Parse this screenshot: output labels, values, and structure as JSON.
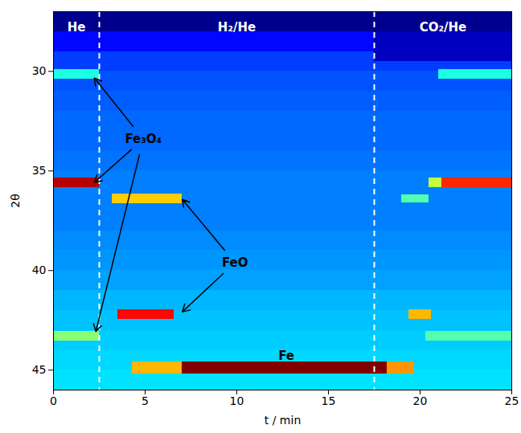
{
  "chart_data": {
    "type": "heatmap",
    "x_label": "t / min",
    "y_label": "2θ",
    "xlim": [
      0,
      25
    ],
    "xticks": [
      0,
      5,
      10,
      15,
      20,
      25
    ],
    "ylim": [
      46,
      27
    ],
    "yticks": [
      30,
      35,
      40,
      45
    ],
    "dividers": [
      2.5,
      17.5
    ],
    "regions": [
      {
        "text": "He",
        "x": 1.25,
        "y": 27.8
      },
      {
        "text": "H₂/He",
        "x": 10,
        "y": 27.8
      },
      {
        "text": "CO₂/He",
        "x": 21.25,
        "y": 27.8
      }
    ],
    "annotations": [
      {
        "text": "Fe₃O₄",
        "x": 4.9,
        "y": 33.4,
        "targets": [
          [
            2.2,
            30.3
          ],
          [
            2.2,
            35.6
          ],
          [
            2.3,
            43.1
          ]
        ]
      },
      {
        "text": "FeO",
        "x": 9.9,
        "y": 39.6,
        "targets": [
          [
            7.0,
            36.4
          ],
          [
            7.0,
            42.1
          ]
        ]
      },
      {
        "text": "Fe",
        "x": 12.7,
        "y": 44.3,
        "targets": []
      }
    ],
    "cells": [
      {
        "t0": 0,
        "t1": 25,
        "y0": 27,
        "y1": 28,
        "value": 0.08
      },
      {
        "t0": 0,
        "t1": 25,
        "y0": 28,
        "y1": 29,
        "value": 0.2
      },
      {
        "t0": 0,
        "t1": 25,
        "y0": 29,
        "y1": 30,
        "value": 0.25
      },
      {
        "t0": 0,
        "t1": 25,
        "y0": 30,
        "y1": 31,
        "value": 0.27
      },
      {
        "t0": 0,
        "t1": 25,
        "y0": 31,
        "y1": 32,
        "value": 0.28
      },
      {
        "t0": 0,
        "t1": 25,
        "y0": 32,
        "y1": 33,
        "value": 0.29
      },
      {
        "t0": 0,
        "t1": 25,
        "y0": 33,
        "y1": 34,
        "value": 0.29
      },
      {
        "t0": 0,
        "t1": 25,
        "y0": 34,
        "y1": 35,
        "value": 0.3
      },
      {
        "t0": 0,
        "t1": 25,
        "y0": 35,
        "y1": 36,
        "value": 0.31
      },
      {
        "t0": 0,
        "t1": 25,
        "y0": 36,
        "y1": 37,
        "value": 0.31
      },
      {
        "t0": 0,
        "t1": 25,
        "y0": 37,
        "y1": 38,
        "value": 0.31
      },
      {
        "t0": 0,
        "t1": 25,
        "y0": 38,
        "y1": 39,
        "value": 0.32
      },
      {
        "t0": 0,
        "t1": 25,
        "y0": 39,
        "y1": 40,
        "value": 0.33
      },
      {
        "t0": 0,
        "t1": 25,
        "y0": 40,
        "y1": 41,
        "value": 0.34
      },
      {
        "t0": 0,
        "t1": 25,
        "y0": 41,
        "y1": 42,
        "value": 0.36
      },
      {
        "t0": 0,
        "t1": 25,
        "y0": 42,
        "y1": 43,
        "value": 0.37
      },
      {
        "t0": 0,
        "t1": 25,
        "y0": 43,
        "y1": 44,
        "value": 0.38
      },
      {
        "t0": 0,
        "t1": 25,
        "y0": 44,
        "y1": 45,
        "value": 0.39
      },
      {
        "t0": 0,
        "t1": 25,
        "y0": 45,
        "y1": 46,
        "value": 0.4
      },
      {
        "t0": 17.5,
        "t1": 25,
        "y0": 28,
        "y1": 29.5,
        "value": 0.13
      },
      {
        "t0": 0,
        "t1": 2.5,
        "y0": 29.9,
        "y1": 30.4,
        "value": 0.45
      },
      {
        "t0": 21,
        "t1": 25,
        "y0": 29.9,
        "y1": 30.4,
        "value": 0.45
      },
      {
        "t0": 0,
        "t1": 2.5,
        "y0": 35.35,
        "y1": 35.85,
        "value": 0.95
      },
      {
        "t0": 20.5,
        "t1": 21.2,
        "y0": 35.35,
        "y1": 35.85,
        "value": 0.6
      },
      {
        "t0": 21.2,
        "t1": 25,
        "y0": 35.35,
        "y1": 35.85,
        "value": 0.85
      },
      {
        "t0": 0,
        "t1": 2.5,
        "y0": 43.05,
        "y1": 43.55,
        "value": 0.55
      },
      {
        "t0": 20.3,
        "t1": 25,
        "y0": 43.05,
        "y1": 43.55,
        "value": 0.5
      },
      {
        "t0": 3.2,
        "t1": 7,
        "y0": 36.15,
        "y1": 36.65,
        "value": 0.7
      },
      {
        "t0": 19,
        "t1": 20.5,
        "y0": 36.2,
        "y1": 36.6,
        "value": 0.5
      },
      {
        "t0": 3.5,
        "t1": 6.6,
        "y0": 41.95,
        "y1": 42.45,
        "value": 0.88
      },
      {
        "t0": 19.4,
        "t1": 20.6,
        "y0": 41.95,
        "y1": 42.45,
        "value": 0.72
      },
      {
        "t0": 4.3,
        "t1": 7,
        "y0": 44.6,
        "y1": 45.2,
        "value": 0.72
      },
      {
        "t0": 7,
        "t1": 18.2,
        "y0": 44.6,
        "y1": 45.2,
        "value": 1.0
      },
      {
        "t0": 18.2,
        "t1": 19.7,
        "y0": 44.6,
        "y1": 45.2,
        "value": 0.75
      }
    ]
  }
}
